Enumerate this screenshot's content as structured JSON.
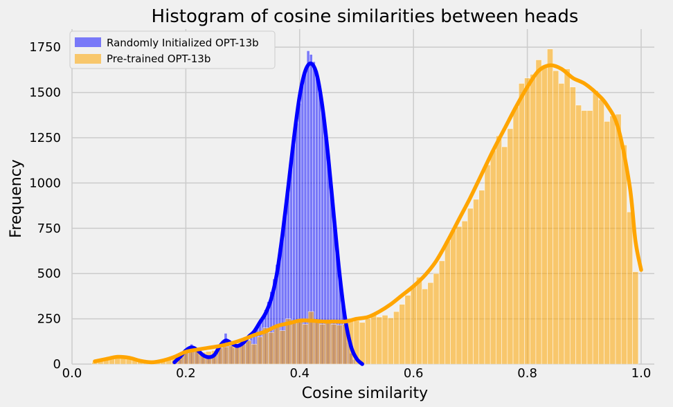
{
  "chart_data": {
    "type": "histogram",
    "title": "Histogram of cosine similarities between heads",
    "xlabel": "Cosine similarity",
    "ylabel": "Frequency",
    "xlim": [
      0.0,
      1.0
    ],
    "ylim": [
      0,
      1850
    ],
    "xticks": [
      "0.0",
      "0.2",
      "0.4",
      "0.6",
      "0.8",
      "1.0"
    ],
    "xtick_values": [
      0.0,
      0.2,
      0.4,
      0.6,
      0.8,
      1.0
    ],
    "yticks": [
      "0",
      "250",
      "500",
      "750",
      "1000",
      "1250",
      "1500",
      "1750"
    ],
    "ytick_values": [
      0,
      250,
      500,
      750,
      1000,
      1250,
      1500,
      1750
    ],
    "grid": true,
    "legend_position": "top-left",
    "series": [
      {
        "name": "Randomly Initialized OPT-13b",
        "color": "#0000ff",
        "kde_color": "#0000ff",
        "peak_x": 0.42,
        "peak_y": 1660,
        "range": [
          0.18,
          0.5
        ],
        "bars": [
          [
            0.185,
            10
          ],
          [
            0.19,
            25
          ],
          [
            0.195,
            50
          ],
          [
            0.2,
            75
          ],
          [
            0.205,
            90
          ],
          [
            0.21,
            110
          ],
          [
            0.215,
            85
          ],
          [
            0.22,
            70
          ],
          [
            0.225,
            50
          ],
          [
            0.23,
            40
          ],
          [
            0.235,
            30
          ],
          [
            0.24,
            35
          ],
          [
            0.245,
            45
          ],
          [
            0.25,
            55
          ],
          [
            0.255,
            75
          ],
          [
            0.26,
            95
          ],
          [
            0.265,
            120
          ],
          [
            0.27,
            170
          ],
          [
            0.275,
            130
          ],
          [
            0.28,
            105
          ],
          [
            0.285,
            90
          ],
          [
            0.29,
            95
          ],
          [
            0.295,
            105
          ],
          [
            0.3,
            115
          ],
          [
            0.305,
            125
          ],
          [
            0.31,
            135
          ],
          [
            0.315,
            150
          ],
          [
            0.32,
            170
          ],
          [
            0.325,
            195
          ],
          [
            0.33,
            225
          ],
          [
            0.335,
            260
          ],
          [
            0.34,
            300
          ],
          [
            0.345,
            345
          ],
          [
            0.35,
            400
          ],
          [
            0.355,
            470
          ],
          [
            0.36,
            550
          ],
          [
            0.365,
            640
          ],
          [
            0.37,
            740
          ],
          [
            0.375,
            850
          ],
          [
            0.38,
            970
          ],
          [
            0.385,
            1090
          ],
          [
            0.39,
            1210
          ],
          [
            0.395,
            1330
          ],
          [
            0.4,
            1440
          ],
          [
            0.405,
            1540
          ],
          [
            0.41,
            1620
          ],
          [
            0.415,
            1730
          ],
          [
            0.42,
            1710
          ],
          [
            0.425,
            1670
          ],
          [
            0.43,
            1620
          ],
          [
            0.435,
            1540
          ],
          [
            0.44,
            1440
          ],
          [
            0.445,
            1320
          ],
          [
            0.45,
            1170
          ],
          [
            0.455,
            1000
          ],
          [
            0.46,
            830
          ],
          [
            0.465,
            650
          ],
          [
            0.47,
            480
          ],
          [
            0.475,
            340
          ],
          [
            0.48,
            220
          ],
          [
            0.485,
            120
          ],
          [
            0.49,
            60
          ],
          [
            0.495,
            25
          ]
        ],
        "kde": [
          [
            0.18,
            10
          ],
          [
            0.19,
            40
          ],
          [
            0.2,
            75
          ],
          [
            0.21,
            92
          ],
          [
            0.22,
            78
          ],
          [
            0.23,
            50
          ],
          [
            0.24,
            38
          ],
          [
            0.25,
            50
          ],
          [
            0.26,
            100
          ],
          [
            0.27,
            130
          ],
          [
            0.28,
            115
          ],
          [
            0.29,
            100
          ],
          [
            0.3,
            115
          ],
          [
            0.31,
            150
          ],
          [
            0.32,
            180
          ],
          [
            0.33,
            230
          ],
          [
            0.34,
            280
          ],
          [
            0.35,
            360
          ],
          [
            0.36,
            500
          ],
          [
            0.37,
            720
          ],
          [
            0.38,
            980
          ],
          [
            0.39,
            1250
          ],
          [
            0.4,
            1480
          ],
          [
            0.41,
            1620
          ],
          [
            0.42,
            1660
          ],
          [
            0.43,
            1600
          ],
          [
            0.44,
            1420
          ],
          [
            0.45,
            1150
          ],
          [
            0.46,
            820
          ],
          [
            0.47,
            500
          ],
          [
            0.48,
            250
          ],
          [
            0.49,
            100
          ],
          [
            0.5,
            30
          ],
          [
            0.51,
            0
          ]
        ]
      },
      {
        "name": "Pre-trained OPT-13b",
        "color": "#ffa500",
        "kde_color": "#ffa500",
        "peak_x": 0.845,
        "peak_y": 1650,
        "range": [
          0.04,
          1.0
        ],
        "bars": [
          [
            0.04,
            10
          ],
          [
            0.05,
            20
          ],
          [
            0.06,
            30
          ],
          [
            0.07,
            35
          ],
          [
            0.08,
            45
          ],
          [
            0.09,
            40
          ],
          [
            0.1,
            30
          ],
          [
            0.11,
            25
          ],
          [
            0.12,
            20
          ],
          [
            0.13,
            20
          ],
          [
            0.14,
            20
          ],
          [
            0.15,
            20
          ],
          [
            0.16,
            25
          ],
          [
            0.17,
            30
          ],
          [
            0.18,
            45
          ],
          [
            0.19,
            60
          ],
          [
            0.2,
            75
          ],
          [
            0.21,
            80
          ],
          [
            0.22,
            70
          ],
          [
            0.23,
            65
          ],
          [
            0.24,
            70
          ],
          [
            0.25,
            75
          ],
          [
            0.26,
            90
          ],
          [
            0.27,
            95
          ],
          [
            0.28,
            100
          ],
          [
            0.29,
            105
          ],
          [
            0.3,
            110
          ],
          [
            0.31,
            130
          ],
          [
            0.32,
            110
          ],
          [
            0.33,
            150
          ],
          [
            0.34,
            200
          ],
          [
            0.35,
            175
          ],
          [
            0.36,
            210
          ],
          [
            0.37,
            185
          ],
          [
            0.38,
            250
          ],
          [
            0.39,
            230
          ],
          [
            0.4,
            240
          ],
          [
            0.41,
            220
          ],
          [
            0.42,
            290
          ],
          [
            0.43,
            240
          ],
          [
            0.44,
            220
          ],
          [
            0.45,
            230
          ],
          [
            0.46,
            220
          ],
          [
            0.47,
            215
          ],
          [
            0.48,
            220
          ],
          [
            0.49,
            235
          ],
          [
            0.5,
            240
          ],
          [
            0.51,
            230
          ],
          [
            0.52,
            250
          ],
          [
            0.53,
            270
          ],
          [
            0.54,
            260
          ],
          [
            0.55,
            270
          ],
          [
            0.56,
            255
          ],
          [
            0.57,
            290
          ],
          [
            0.58,
            330
          ],
          [
            0.59,
            380
          ],
          [
            0.6,
            430
          ],
          [
            0.61,
            480
          ],
          [
            0.62,
            415
          ],
          [
            0.63,
            450
          ],
          [
            0.64,
            500
          ],
          [
            0.65,
            570
          ],
          [
            0.66,
            680
          ],
          [
            0.67,
            740
          ],
          [
            0.68,
            760
          ],
          [
            0.69,
            790
          ],
          [
            0.7,
            860
          ],
          [
            0.71,
            910
          ],
          [
            0.72,
            960
          ],
          [
            0.73,
            1100
          ],
          [
            0.74,
            1180
          ],
          [
            0.75,
            1260
          ],
          [
            0.76,
            1200
          ],
          [
            0.77,
            1300
          ],
          [
            0.78,
            1420
          ],
          [
            0.79,
            1550
          ],
          [
            0.8,
            1580
          ],
          [
            0.81,
            1600
          ],
          [
            0.82,
            1680
          ],
          [
            0.83,
            1650
          ],
          [
            0.84,
            1740
          ],
          [
            0.85,
            1620
          ],
          [
            0.86,
            1550
          ],
          [
            0.87,
            1630
          ],
          [
            0.88,
            1530
          ],
          [
            0.89,
            1430
          ],
          [
            0.9,
            1400
          ],
          [
            0.91,
            1400
          ],
          [
            0.92,
            1510
          ],
          [
            0.93,
            1460
          ],
          [
            0.94,
            1340
          ],
          [
            0.95,
            1370
          ],
          [
            0.96,
            1380
          ],
          [
            0.97,
            1210
          ],
          [
            0.98,
            840
          ],
          [
            0.99,
            510
          ]
        ],
        "kde": [
          [
            0.04,
            15
          ],
          [
            0.06,
            28
          ],
          [
            0.08,
            40
          ],
          [
            0.1,
            35
          ],
          [
            0.12,
            18
          ],
          [
            0.14,
            10
          ],
          [
            0.16,
            20
          ],
          [
            0.18,
            40
          ],
          [
            0.2,
            68
          ],
          [
            0.22,
            80
          ],
          [
            0.24,
            90
          ],
          [
            0.26,
            100
          ],
          [
            0.28,
            115
          ],
          [
            0.3,
            135
          ],
          [
            0.32,
            160
          ],
          [
            0.34,
            180
          ],
          [
            0.36,
            210
          ],
          [
            0.38,
            225
          ],
          [
            0.4,
            240
          ],
          [
            0.42,
            240
          ],
          [
            0.44,
            235
          ],
          [
            0.46,
            235
          ],
          [
            0.48,
            235
          ],
          [
            0.5,
            250
          ],
          [
            0.52,
            260
          ],
          [
            0.54,
            290
          ],
          [
            0.56,
            330
          ],
          [
            0.58,
            380
          ],
          [
            0.6,
            430
          ],
          [
            0.62,
            490
          ],
          [
            0.64,
            570
          ],
          [
            0.66,
            680
          ],
          [
            0.68,
            800
          ],
          [
            0.7,
            920
          ],
          [
            0.72,
            1050
          ],
          [
            0.74,
            1180
          ],
          [
            0.76,
            1300
          ],
          [
            0.78,
            1420
          ],
          [
            0.8,
            1530
          ],
          [
            0.82,
            1620
          ],
          [
            0.84,
            1650
          ],
          [
            0.86,
            1630
          ],
          [
            0.88,
            1580
          ],
          [
            0.9,
            1550
          ],
          [
            0.92,
            1500
          ],
          [
            0.94,
            1430
          ],
          [
            0.96,
            1300
          ],
          [
            0.98,
            980
          ],
          [
            0.99,
            680
          ],
          [
            1.0,
            520
          ]
        ]
      }
    ]
  }
}
